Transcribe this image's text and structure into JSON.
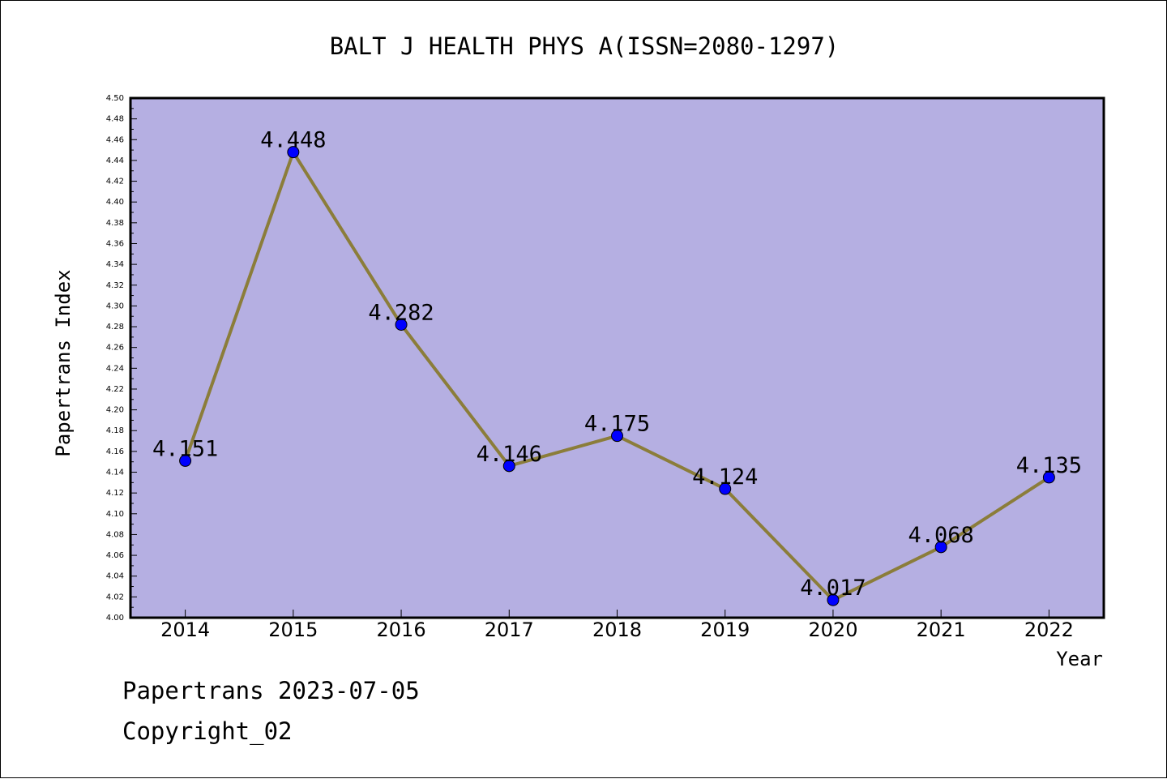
{
  "footer": {
    "line1": "Papertrans 2023-07-05",
    "line2": "Copyright_02"
  },
  "chart_data": {
    "type": "line",
    "title": "BALT J HEALTH PHYS A(ISSN=2080-1297)",
    "xlabel": "Year",
    "ylabel": "Papertrans Index",
    "categories": [
      "2014",
      "2015",
      "2016",
      "2017",
      "2018",
      "2019",
      "2020",
      "2021",
      "2022"
    ],
    "values": [
      4.151,
      4.448,
      4.282,
      4.146,
      4.175,
      4.124,
      4.017,
      4.068,
      4.135
    ],
    "data_labels": [
      "4.151",
      "4.448",
      "4.282",
      "4.146",
      "4.175",
      "4.124",
      "4.017",
      "4.068",
      "4.135"
    ],
    "ylim": [
      4.0,
      4.5
    ],
    "ytick_step": 0.02,
    "grid": false,
    "legend": "none",
    "colors": {
      "plot_background": "#b5afe2",
      "line": "#8b7d3a",
      "marker": "#0000ff"
    }
  }
}
